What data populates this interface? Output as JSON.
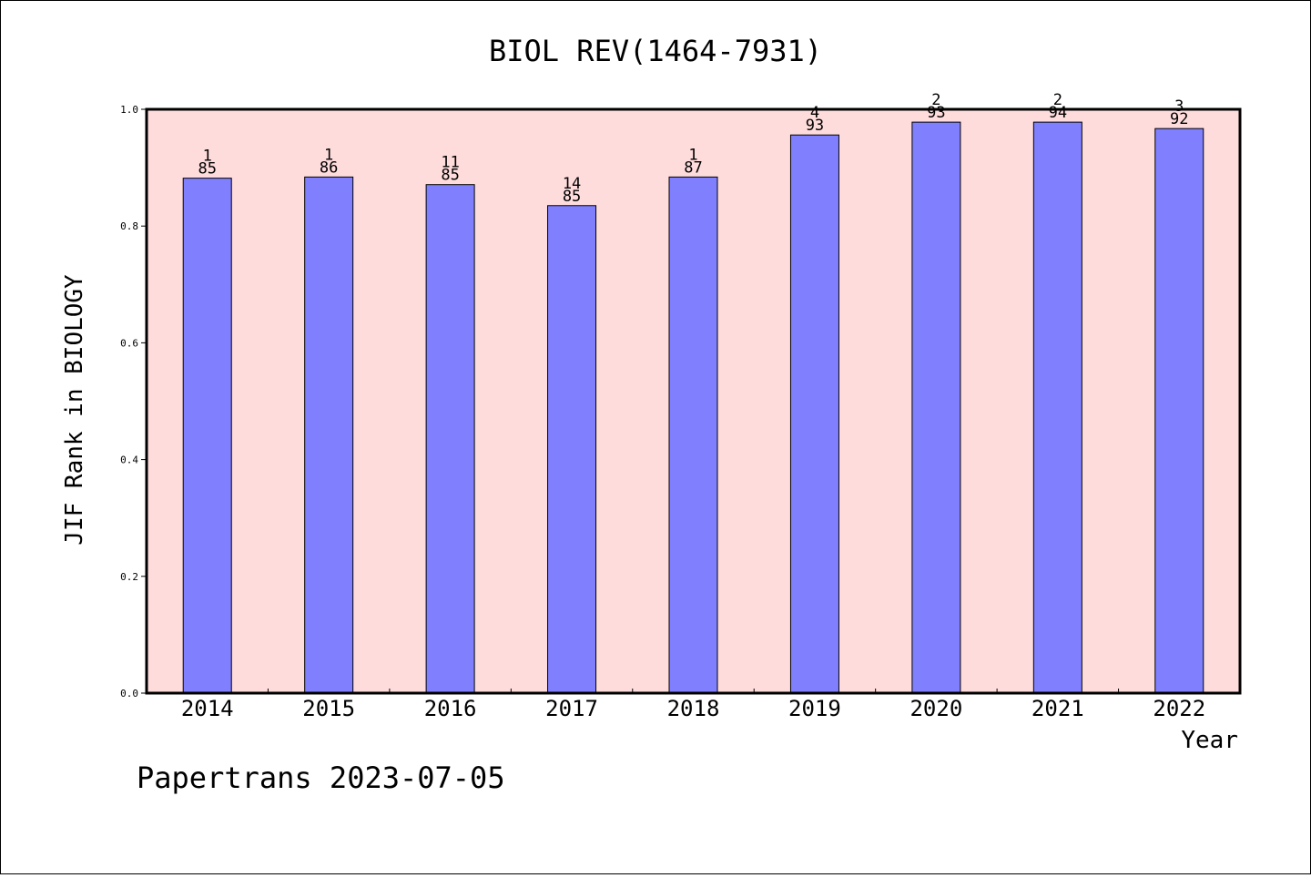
{
  "colors": {
    "plot_background": "#ffdcdc",
    "bar_fill": "#8080ff",
    "bar_stroke": "#000000",
    "axis": "#000000"
  },
  "footer_text": "Papertrans 2023-07-05",
  "chart_data": {
    "type": "bar",
    "title": "BIOL REV(1464-7931)",
    "xlabel": "Year",
    "ylabel": "JIF Rank in BIOLOGY",
    "ylim": [
      0,
      1.0
    ],
    "yticks": [
      "0.0",
      "0.2",
      "0.4",
      "0.6",
      "0.8",
      "1.0"
    ],
    "ytick_values": [
      0,
      0.2,
      0.4,
      0.6,
      0.8,
      1.0
    ],
    "categories": [
      "2014",
      "2015",
      "2016",
      "2017",
      "2018",
      "2019",
      "2020",
      "2021",
      "2022"
    ],
    "values": [
      0.882,
      0.884,
      0.871,
      0.835,
      0.884,
      0.956,
      0.978,
      0.978,
      0.967
    ],
    "rank": [
      "1",
      "1",
      "11",
      "14",
      "1",
      "4",
      "2",
      "2",
      "3"
    ],
    "total": [
      "85",
      "86",
      "85",
      "85",
      "87",
      "93",
      "93",
      "94",
      "92"
    ],
    "grid": false,
    "legend": "none"
  }
}
